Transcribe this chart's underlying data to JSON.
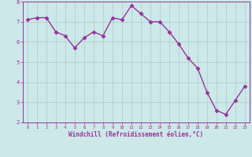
{
  "x": [
    0,
    1,
    2,
    3,
    4,
    5,
    6,
    7,
    8,
    9,
    10,
    11,
    12,
    13,
    14,
    15,
    16,
    17,
    18,
    19,
    20,
    21,
    22,
    23
  ],
  "y": [
    7.1,
    7.2,
    7.2,
    6.5,
    6.3,
    5.7,
    6.2,
    6.5,
    6.3,
    7.2,
    7.1,
    7.8,
    7.4,
    7.0,
    7.0,
    6.5,
    5.9,
    5.2,
    4.7,
    3.5,
    2.6,
    2.4,
    3.1,
    3.8
  ],
  "line_color": "#993399",
  "marker": "D",
  "marker_size": 2.5,
  "background_color": "#cce8e8",
  "grid_color": "#aacccc",
  "xlabel": "Windchill (Refroidissement éolien,°C)",
  "ylim": [
    2,
    8
  ],
  "xlim_min": -0.5,
  "xlim_max": 23.5,
  "yticks": [
    2,
    3,
    4,
    5,
    6,
    7,
    8
  ],
  "xticks": [
    0,
    1,
    2,
    3,
    4,
    5,
    6,
    7,
    8,
    9,
    10,
    11,
    12,
    13,
    14,
    15,
    16,
    17,
    18,
    19,
    20,
    21,
    22,
    23
  ],
  "tick_color": "#993399",
  "label_color": "#993399",
  "font": "monospace",
  "linewidth": 1.0
}
